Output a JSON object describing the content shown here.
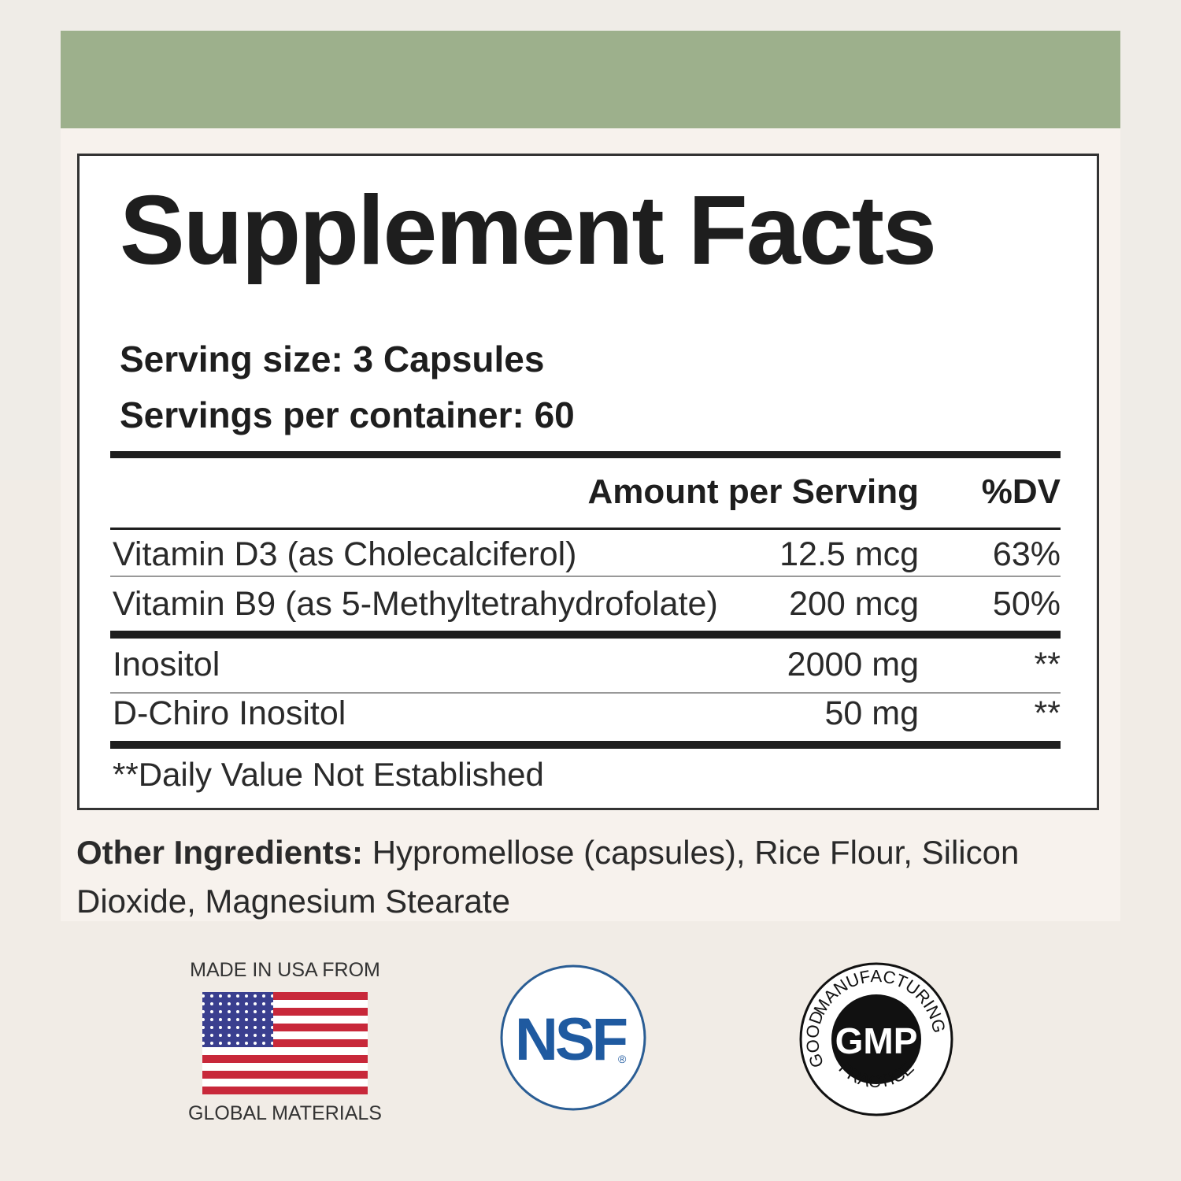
{
  "label": {
    "title": "Supplement Facts",
    "serving_size": "Serving size: 3 Capsules",
    "servings_per_container": "Servings per container: 60",
    "columns": [
      "Amount per Serving",
      "%DV"
    ],
    "rows": [
      {
        "name": "Vitamin D3 (as Cholecalciferol)",
        "amount": "12.5 mcg",
        "dv": "63%"
      },
      {
        "name": "Vitamin B9 (as 5-Methyltetrahydrofolate)",
        "amount": "200 mcg",
        "dv": "50%"
      },
      {
        "name": "Inositol",
        "amount": "2000 mg",
        "dv": "**"
      },
      {
        "name": "D-Chiro Inositol",
        "amount": "50 mg",
        "dv": "**"
      }
    ],
    "footnote": "**Daily Value Not Established"
  },
  "other_ingredients": {
    "heading": "Other Ingredients:",
    "text": "Hypromellose (capsules), Rice Flour, Silicon Dioxide, Magnesium Stearate"
  },
  "badges": {
    "usa": {
      "top": "MADE IN USA FROM",
      "bottom": "GLOBAL MATERIALS"
    },
    "nsf": {
      "text": "NSF",
      "mark": "®"
    },
    "gmp": {
      "center": "GMP",
      "top": "MANUFACTURING",
      "left": "GOOD",
      "bottom": "PRACTICE"
    }
  }
}
